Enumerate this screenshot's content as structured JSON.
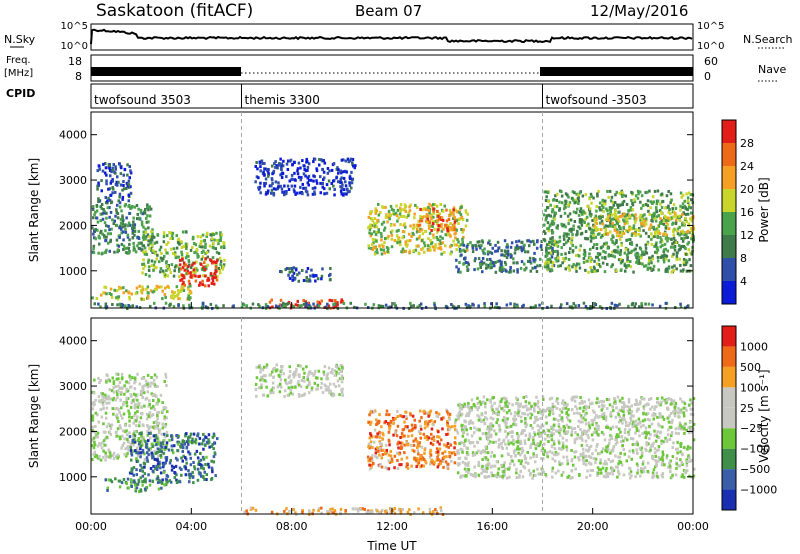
{
  "header": {
    "title": "Saskatoon (fitACF)",
    "beam": "Beam 07",
    "date": "12/May/2016"
  },
  "noise_panel": {
    "left_label": "N.Sky",
    "left_ticks": [
      "10^5",
      "10^0"
    ],
    "right_ticks": [
      "10^5",
      "10^0"
    ],
    "right_label": "N.Search"
  },
  "freq_panel": {
    "left_label_line1": "Freq.",
    "left_label_line2": "[MHz]",
    "left_ticks": [
      "18",
      "8"
    ],
    "right_ticks": [
      "60",
      "0"
    ],
    "right_label": "Nave"
  },
  "cpid": {
    "label": "CPID",
    "segments": [
      {
        "name": "twofsound 3503",
        "start_hour": 0
      },
      {
        "name": "themis 3300",
        "start_hour": 6
      },
      {
        "name": "twofsound -3503",
        "start_hour": 18
      }
    ]
  },
  "colors": {
    "power_scale": [
      "#0b1bd8",
      "#2f4fa8",
      "#3f7a4a",
      "#4aa24a",
      "#c8d52a",
      "#f5a024",
      "#ee6a18",
      "#e21e18"
    ],
    "velocity_scale": [
      "#1a2fb0",
      "#3a5fa8",
      "#3f8f4a",
      "#6cc83a",
      "#c8c8c2",
      "#c8c8c2",
      "#f5a024",
      "#ee6a18",
      "#e21e18"
    ]
  },
  "chart_data": [
    {
      "type": "heatmap",
      "title": "",
      "ylabel": "Slant Range [km]",
      "xlabel": "",
      "x_range_hours": [
        0,
        24
      ],
      "ylim": [
        180,
        4500
      ],
      "y_ticks": [
        "1000",
        "2000",
        "3000",
        "4000"
      ],
      "x_ticks": [],
      "mode_change_hours": [
        6,
        18
      ],
      "colorbar": {
        "label": "Power [dB]",
        "ticks": [
          "4",
          "8",
          "12",
          "16",
          "20",
          "24",
          "28"
        ]
      },
      "regions": [
        {
          "t0": 0.0,
          "t1": 2.5,
          "r0": 1400,
          "r1": 2500,
          "level": 0.35
        },
        {
          "t0": 0.2,
          "t1": 1.6,
          "r0": 2500,
          "r1": 3400,
          "level": 0.2
        },
        {
          "t0": 2.0,
          "t1": 5.3,
          "r0": 900,
          "r1": 1900,
          "level": 0.45
        },
        {
          "t0": 3.5,
          "t1": 5.0,
          "r0": 700,
          "r1": 1300,
          "level": 0.95
        },
        {
          "t0": 0.0,
          "t1": 4.0,
          "r0": 400,
          "r1": 700,
          "level": 0.55
        },
        {
          "t0": 6.5,
          "t1": 10.5,
          "r0": 2700,
          "r1": 3500,
          "level": 0.12
        },
        {
          "t0": 7.5,
          "t1": 9.5,
          "r0": 800,
          "r1": 1100,
          "level": 0.2
        },
        {
          "t0": 7.0,
          "t1": 10.0,
          "r0": 200,
          "r1": 400,
          "level": 0.9
        },
        {
          "t0": 11.0,
          "t1": 15.0,
          "r0": 1400,
          "r1": 2500,
          "level": 0.55
        },
        {
          "t0": 13.0,
          "t1": 14.5,
          "r0": 1900,
          "r1": 2400,
          "level": 0.8
        },
        {
          "t0": 14.5,
          "t1": 18.5,
          "r0": 1000,
          "r1": 1700,
          "level": 0.3
        },
        {
          "t0": 18.0,
          "t1": 24.0,
          "r0": 1000,
          "r1": 2800,
          "level": 0.4
        },
        {
          "t0": 20.0,
          "t1": 24.0,
          "r0": 1800,
          "r1": 2300,
          "level": 0.6
        },
        {
          "t0": 0.0,
          "t1": 24.0,
          "r0": 200,
          "r1": 320,
          "level": 0.3
        }
      ]
    },
    {
      "type": "heatmap",
      "title": "",
      "ylabel": "Slant Range [km]",
      "xlabel": "Time UT",
      "x_range_hours": [
        0,
        24
      ],
      "ylim": [
        180,
        4500
      ],
      "y_ticks": [
        "1000",
        "2000",
        "3000",
        "4000"
      ],
      "x_ticks": [
        "00:00",
        "04:00",
        "08:00",
        "12:00",
        "16:00",
        "20:00",
        "00:00"
      ],
      "mode_change_hours": [
        6,
        18
      ],
      "colorbar": {
        "label": "Velocity [m s⁻¹]",
        "ticks": [
          "1000",
          "500",
          "100",
          "25",
          "−25",
          "−100",
          "−500",
          "−1000"
        ]
      },
      "regions": [
        {
          "t0": 0.0,
          "t1": 3.0,
          "r0": 1400,
          "r1": 3300,
          "level": 0.5
        },
        {
          "t0": 1.5,
          "t1": 5.0,
          "r0": 900,
          "r1": 2000,
          "level": 0.2
        },
        {
          "t0": 0.5,
          "t1": 3.0,
          "r0": 700,
          "r1": 1000,
          "level": 0.28
        },
        {
          "t0": 6.5,
          "t1": 10.0,
          "r0": 2800,
          "r1": 3500,
          "level": 0.5
        },
        {
          "t0": 11.0,
          "t1": 14.5,
          "r0": 1200,
          "r1": 2500,
          "level": 0.78
        },
        {
          "t0": 14.5,
          "t1": 24.0,
          "r0": 1000,
          "r1": 2800,
          "level": 0.5
        },
        {
          "t0": 6.0,
          "t1": 14.0,
          "r0": 200,
          "r1": 350,
          "level": 0.68
        }
      ]
    }
  ]
}
